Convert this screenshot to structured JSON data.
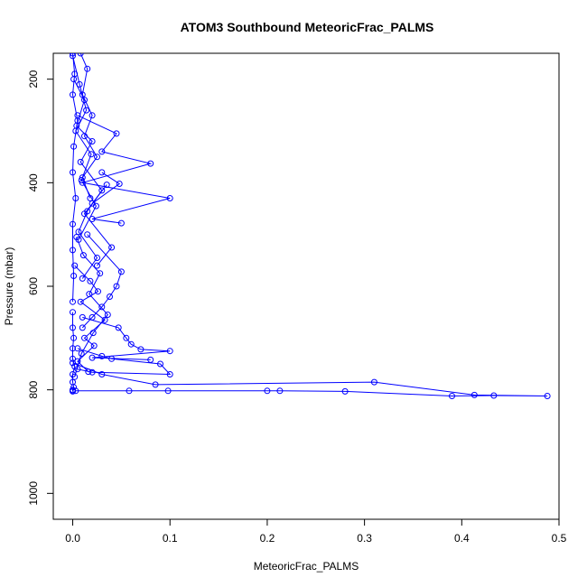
{
  "chart_data": {
    "type": "line",
    "title": "ATOM3 Southbound MeteoricFrac_PALMS",
    "xlabel": "MeteoricFrac_PALMS",
    "ylabel": "Pressure (mbar)",
    "xlim": [
      -0.02,
      0.5
    ],
    "ylim": [
      1050,
      150
    ],
    "y_reversed": true,
    "x_ticks": [
      0.0,
      0.1,
      0.2,
      0.3,
      0.4,
      0.5
    ],
    "x_tick_labels": [
      "0.0",
      "0.1",
      "0.2",
      "0.3",
      "0.4",
      "0.5"
    ],
    "y_ticks": [
      200,
      400,
      600,
      800,
      1000
    ],
    "y_tick_labels": [
      "200",
      "400",
      "600",
      "800",
      "1000"
    ],
    "grid": false,
    "legend": "none",
    "color": "#0000ff",
    "marker": "open-circle",
    "series": [
      {
        "x": [
          0.0,
          0.002,
          0.0,
          0.005,
          0.001,
          0.0,
          0.003,
          0.0,
          0.0,
          0.001,
          0.0
        ],
        "y": [
          150,
          190,
          230,
          280,
          330,
          380,
          430,
          480,
          530,
          580,
          630
        ]
      },
      {
        "x": [
          0.0,
          0.0,
          0.001,
          0.0,
          0.0,
          0.002,
          0.0,
          0.0,
          0.001,
          0.0,
          0.0,
          0.0
        ],
        "y": [
          650,
          680,
          700,
          720,
          740,
          755,
          770,
          785,
          795,
          800,
          802,
          803
        ]
      },
      {
        "x": [
          0.008,
          0.015,
          0.01,
          0.02,
          0.012,
          0.025,
          0.01,
          0.018
        ],
        "y": [
          150,
          180,
          230,
          270,
          310,
          350,
          390,
          430
        ]
      },
      {
        "x": [
          0.005,
          0.045,
          0.03,
          0.08,
          0.01,
          0.1,
          0.02,
          0.05
        ],
        "y": [
          270,
          305,
          340,
          363,
          400,
          430,
          470,
          478
        ]
      },
      {
        "x": [
          0.03,
          0.048,
          0.02,
          0.035,
          0.012,
          0.04,
          0.025
        ],
        "y": [
          380,
          402,
          440,
          404,
          460,
          525,
          560
        ]
      },
      {
        "x": [
          0.015,
          0.05,
          0.045,
          0.038,
          0.03,
          0.02,
          0.01
        ],
        "y": [
          500,
          572,
          600,
          620,
          640,
          660,
          680
        ]
      },
      {
        "x": [
          0.01,
          0.047,
          0.055,
          0.06,
          0.07,
          0.1,
          0.02,
          0.08
        ],
        "y": [
          660,
          680,
          700,
          712,
          722,
          725,
          738,
          742
        ]
      },
      {
        "x": [
          0.005,
          0.03,
          0.04,
          0.09,
          0.1,
          0.02,
          0.005
        ],
        "y": [
          720,
          735,
          740,
          750,
          770,
          766,
          760
        ]
      },
      {
        "x": [
          0.0,
          0.03,
          0.085,
          0.31,
          0.413,
          0.488,
          0.433,
          0.39,
          0.28,
          0.213,
          0.2,
          0.098,
          0.058,
          0.003
        ],
        "y": [
          748,
          770,
          790,
          785,
          810,
          812,
          811,
          812,
          803,
          802,
          802,
          802,
          802,
          802
        ]
      },
      {
        "x": [
          0.001,
          0.012,
          0.004,
          0.02,
          0.008,
          0.03,
          0.015,
          0.006,
          0.025,
          0.01
        ],
        "y": [
          200,
          240,
          290,
          320,
          360,
          415,
          455,
          495,
          545,
          585
        ]
      },
      {
        "x": [
          0.002,
          0.018,
          0.026,
          0.008,
          0.033,
          0.012,
          0.022,
          0.005,
          0.016
        ],
        "y": [
          560,
          590,
          610,
          630,
          665,
          700,
          715,
          745,
          765
        ]
      },
      {
        "x": [
          0.0,
          0.007,
          0.014,
          0.003,
          0.019,
          0.009,
          0.024,
          0.006
        ],
        "y": [
          155,
          210,
          260,
          300,
          345,
          395,
          445,
          510
        ]
      },
      {
        "x": [
          0.004,
          0.011,
          0.028,
          0.017,
          0.036,
          0.021,
          0.009,
          0.002
        ],
        "y": [
          505,
          540,
          575,
          615,
          655,
          690,
          730,
          775
        ]
      }
    ]
  }
}
